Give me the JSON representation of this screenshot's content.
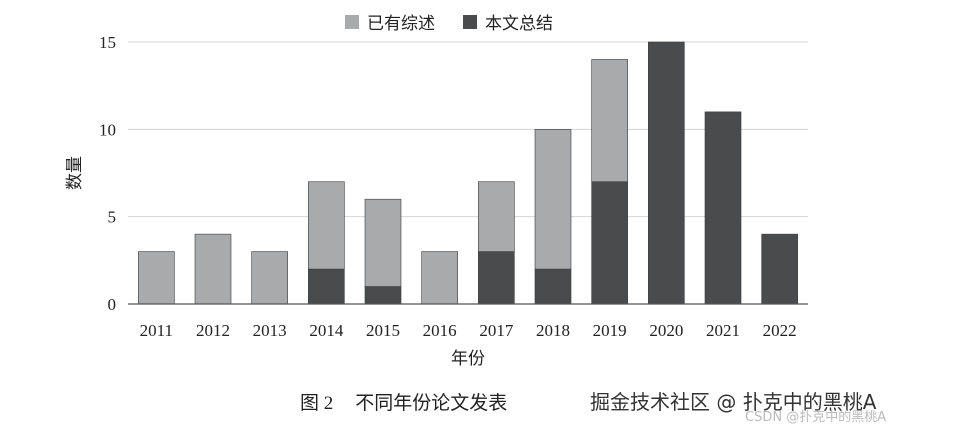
{
  "chart_data": {
    "type": "bar",
    "stacked": true,
    "categories": [
      "2011",
      "2012",
      "2013",
      "2014",
      "2015",
      "2016",
      "2017",
      "2018",
      "2019",
      "2020",
      "2021",
      "2022"
    ],
    "series": [
      {
        "name": "本文总结",
        "color": "#4a4b4d",
        "values": [
          0,
          0,
          0,
          2,
          1,
          0,
          3,
          2,
          7,
          15,
          11,
          4
        ]
      },
      {
        "name": "已有综述",
        "color": "#a9aaac",
        "values": [
          3,
          4,
          3,
          5,
          5,
          3,
          4,
          8,
          7,
          0,
          0,
          0
        ]
      }
    ],
    "xlabel": "年份",
    "ylabel": "数量",
    "ylim": [
      0,
      15
    ],
    "yticks": [
      0,
      5,
      10,
      15
    ],
    "grid": true,
    "legend": "top-center"
  },
  "caption": {
    "number": "图 2",
    "text": "不同年份论文发表"
  },
  "watermark": {
    "main": "掘金技术社区 @ 扑克中的黑桃A",
    "secondary": "CSDN @扑克中的黑桃A"
  }
}
